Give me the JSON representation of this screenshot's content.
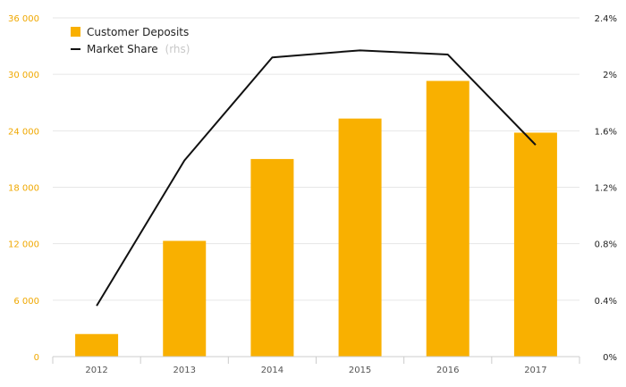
{
  "chart_data": {
    "type": "bar",
    "categories": [
      "2012",
      "2013",
      "2014",
      "2015",
      "2016",
      "2017"
    ],
    "series": [
      {
        "name": "Customer Deposits",
        "type": "bar",
        "axis": "left",
        "color": "#f9b000",
        "values": [
          2400,
          12300,
          21000,
          25300,
          29300,
          23800
        ]
      },
      {
        "name": "Market Share",
        "name_suffix": "(rhs)",
        "type": "line",
        "axis": "right",
        "color": "#111111",
        "values": [
          0.36,
          1.39,
          2.12,
          2.17,
          2.14,
          1.5
        ]
      }
    ],
    "y_left": {
      "ylim": [
        0,
        36000
      ],
      "ticks": [
        0,
        6000,
        12000,
        18000,
        24000,
        30000,
        36000
      ],
      "tick_labels": [
        "0",
        "6 000",
        "12 000",
        "18 000",
        "24 000",
        "30 000",
        "36 000"
      ],
      "color": "#f0a800"
    },
    "y_right": {
      "ylim": [
        0,
        2.4
      ],
      "ticks": [
        0,
        0.4,
        0.8,
        1.2,
        1.6,
        2.0,
        2.4
      ],
      "tick_labels": [
        "0%",
        "0.4%",
        "0.8%",
        "1.2%",
        "1.6%",
        "2%",
        "2.4%"
      ]
    },
    "grid": true,
    "legend_position": "top-left"
  }
}
